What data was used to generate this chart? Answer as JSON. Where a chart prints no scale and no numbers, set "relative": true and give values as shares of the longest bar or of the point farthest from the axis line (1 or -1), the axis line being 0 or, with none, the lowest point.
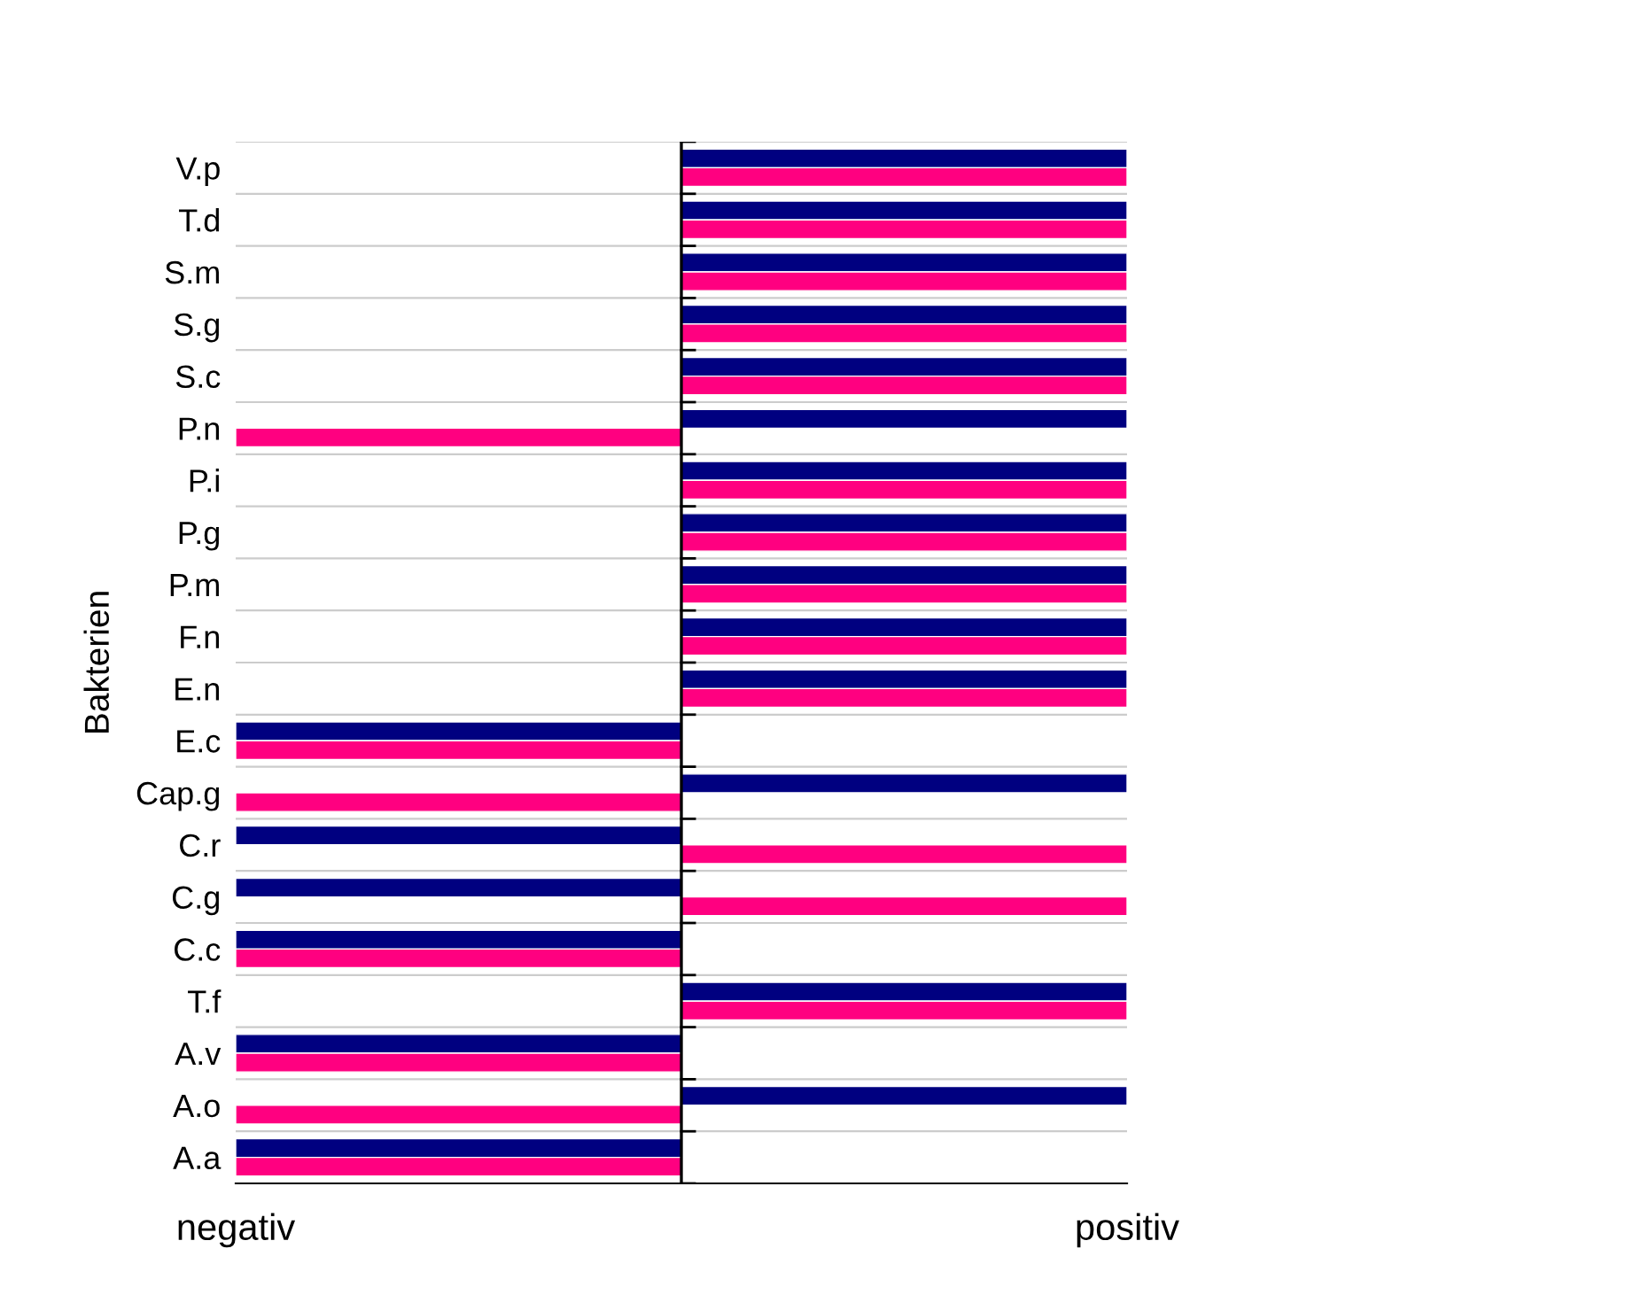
{
  "chart_data": {
    "type": "bar",
    "orientation": "horizontal",
    "relative": true,
    "ylabel": "Bakterien",
    "grid": "y",
    "categories": [
      "V.p",
      "T.d",
      "S.m",
      "S.g",
      "S.c",
      "P.n",
      "P.i",
      "P.g",
      "P.m",
      "F.n",
      "E.n",
      "E.c",
      "Cap.g",
      "C.r",
      "C.g",
      "C.c",
      "T.f",
      "A.v",
      "A.o",
      "A.a"
    ],
    "series": [
      {
        "color": "#000080",
        "values": [
          1,
          1,
          1,
          1,
          1,
          1,
          1,
          1,
          1,
          1,
          1,
          -1,
          1,
          -1,
          -1,
          -1,
          1,
          -1,
          1,
          -1
        ]
      },
      {
        "color": "#ff0080",
        "values": [
          1,
          1,
          1,
          1,
          1,
          -1,
          1,
          1,
          1,
          1,
          1,
          -1,
          -1,
          1,
          1,
          -1,
          1,
          -1,
          -1,
          -1
        ]
      }
    ],
    "annotations": [
      "negativ",
      "positiv"
    ]
  }
}
